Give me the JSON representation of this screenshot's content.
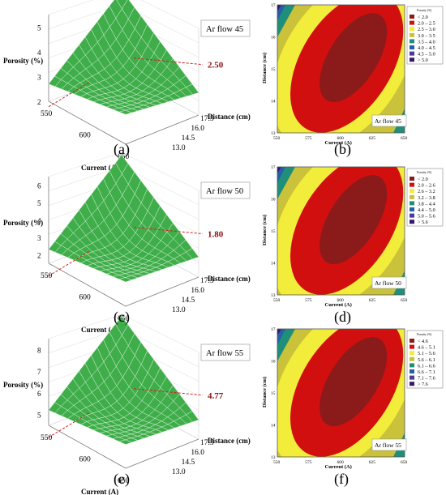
{
  "chart_data": [
    {
      "panel": "(a)",
      "type": "surface",
      "xlabel": "Current (A)",
      "ylabel": "Distance (cm)",
      "zlabel": "Porosity (%)",
      "x_ticks": [
        "550",
        "600",
        "650"
      ],
      "y_ticks": [
        "13.0",
        "14.5",
        "16.0",
        "17.5"
      ],
      "z_ticks": [
        "2",
        "3",
        "4",
        "5"
      ],
      "zlim": [
        2,
        5.5
      ],
      "annotation": "Ar flow  45",
      "marked_value": "2.50",
      "corner_values": {
        "current550_dist13": 2.7,
        "current650_dist13": 3.2,
        "current550_dist17.5": 5.4,
        "current650_dist17.5": 3.0,
        "minimum": 2.5
      }
    },
    {
      "panel": "(b)",
      "type": "contour",
      "xlabel": "Current (A)",
      "ylabel": "Distance (cm)",
      "x_ticks": [
        "550",
        "575",
        "600",
        "625",
        "650"
      ],
      "y_ticks": [
        "13",
        "14",
        "15",
        "16",
        "17"
      ],
      "legend_title": "Porosity (%)",
      "legend": [
        {
          "label": "<  2.0",
          "color": "#8b1a1a"
        },
        {
          "label": "2.0  –  2.5",
          "color": "#d10f0f"
        },
        {
          "label": "2.5  –  3.0",
          "color": "#f2ec3a"
        },
        {
          "label": "3.0  –  3.5",
          "color": "#c9c23a"
        },
        {
          "label": "3.5  –  4.0",
          "color": "#1f8f7a"
        },
        {
          "label": "4.0  –  4.5",
          "color": "#245fa8"
        },
        {
          "label": "4.5  –  5.0",
          "color": "#4a3a9e"
        },
        {
          "label": ">  5.0",
          "color": "#38186e"
        }
      ],
      "annotation": "Ar flow  45"
    },
    {
      "panel": "(c)",
      "type": "surface",
      "xlabel": "Current (A)",
      "ylabel": "Distance (cm)",
      "zlabel": "Porosity (%)",
      "x_ticks": [
        "550",
        "600",
        "650"
      ],
      "y_ticks": [
        "13.0",
        "14.5",
        "16.0",
        "17.5"
      ],
      "z_ticks": [
        "2",
        "3",
        "4",
        "5",
        "6"
      ],
      "zlim": [
        1.5,
        6.5
      ],
      "annotation": "Ar flow  50",
      "marked_value": "1.80",
      "corner_values": {
        "current550_dist13": 2.3,
        "current650_dist13": 2.9,
        "current550_dist17.5": 6.2,
        "current650_dist17.5": 2.8,
        "minimum": 1.8
      }
    },
    {
      "panel": "(d)",
      "type": "contour",
      "xlabel": "Current (A)",
      "ylabel": "Distance (cm)",
      "x_ticks": [
        "550",
        "575",
        "600",
        "625",
        "650"
      ],
      "y_ticks": [
        "13",
        "14",
        "15",
        "16",
        "17"
      ],
      "legend_title": "Porosity (%)",
      "legend": [
        {
          "label": "<  2.0",
          "color": "#8b1a1a"
        },
        {
          "label": "2.0  –  2.6",
          "color": "#d10f0f"
        },
        {
          "label": "2.6  –  3.2",
          "color": "#f2ec3a"
        },
        {
          "label": "3.2  –  3.8",
          "color": "#c9c23a"
        },
        {
          "label": "3.8  –  4.4",
          "color": "#1f8f7a"
        },
        {
          "label": "4.4  –  5.0",
          "color": "#245fa8"
        },
        {
          "label": "5.0  –  5.6",
          "color": "#4a3a9e"
        },
        {
          "label": ">  5.6",
          "color": "#38186e"
        }
      ],
      "annotation": "Ar flow  50"
    },
    {
      "panel": "(e)",
      "type": "surface",
      "xlabel": "Current (A)",
      "ylabel": "Distance (cm)",
      "zlabel": "Porosity (%)",
      "x_ticks": [
        "550",
        "600",
        "650"
      ],
      "y_ticks": [
        "13.0",
        "14.5",
        "16.0",
        "17.5"
      ],
      "z_ticks": [
        "5",
        "6",
        "7",
        "8"
      ],
      "zlim": [
        4.5,
        8.5
      ],
      "annotation": "Ar flow  55",
      "marked_value": "4.77",
      "corner_values": {
        "current550_dist13": 5.2,
        "current650_dist13": 5.6,
        "current550_dist17.5": 8.3,
        "current650_dist17.5": 5.5,
        "minimum": 4.77
      }
    },
    {
      "panel": "(f)",
      "type": "contour",
      "xlabel": "Current (A)",
      "ylabel": "Distance (cm)",
      "x_ticks": [
        "550",
        "575",
        "600",
        "625",
        "650"
      ],
      "y_ticks": [
        "13",
        "14",
        "15",
        "16",
        "17"
      ],
      "legend_title": "Porosity (%)",
      "legend": [
        {
          "label": "<  4.6",
          "color": "#8b1a1a"
        },
        {
          "label": "4.6  –  5.1",
          "color": "#d10f0f"
        },
        {
          "label": "5.1  –  5.6",
          "color": "#f2ec3a"
        },
        {
          "label": "5.6  –  6.1",
          "color": "#c9c23a"
        },
        {
          "label": "6.1  –  6.6",
          "color": "#1f8f7a"
        },
        {
          "label": "6.6  –  7.1",
          "color": "#245fa8"
        },
        {
          "label": "7.1  –  7.6",
          "color": "#4a3a9e"
        },
        {
          "label": ">  7.6",
          "color": "#38186e"
        }
      ],
      "annotation": "Ar flow  55"
    }
  ],
  "colors": {
    "surface_fill": "#3fae4a",
    "surface_grid": "#d8f0d8",
    "marker_line": "#d02020",
    "marker_value": "#8b1010",
    "axes": "#7a7a7a",
    "annotation_border": "#aaaaaa"
  }
}
